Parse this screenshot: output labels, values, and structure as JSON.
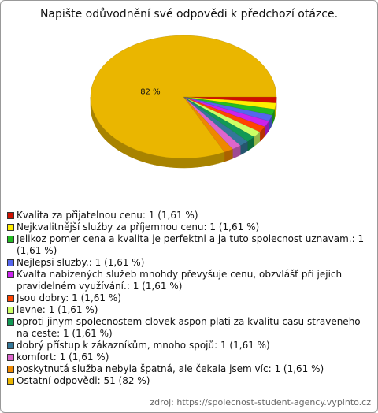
{
  "chart_data": {
    "type": "pie",
    "title": "Napište odůvodnění své odpovědi k předchozí otázce.",
    "categories": [
      "Kvalita za přijatelnou cenu:",
      "Nejkvalitnější služby za příjemnou cenu:",
      "Jelikoz pomer cena a kvalita je perfektni a ja tuto spolecnost uznavam.:",
      "Nejlepsi sluzby.:",
      "Kvalta nabízených služeb mnohdy převyšuje cenu, obzvlášť při jejich pravidelném využívání.:",
      "Jsou dobry:",
      "levne:",
      "oproti jinym spolecnostem clovek aspon plati za kvalitu casu straveneho na ceste:",
      "dobrý přístup k zákazníkům, mnoho spojů:",
      "komfort:",
      "poskytnutá služba nebyla špatná, ale čekala jsem víc:",
      "Ostatní odpovědi:"
    ],
    "values": [
      1,
      1,
      1,
      1,
      1,
      1,
      1,
      1,
      1,
      1,
      1,
      51
    ],
    "value_labels": [
      "1 (1,61 %)",
      "1 (1,61 %)",
      "1 (1,61 %)",
      "1 (1,61 %)",
      "1 (1,61 %)",
      "1 (1,61 %)",
      "1 (1,61 %)",
      "1 (1,61 %)",
      "1 (1,61 %)",
      "1 (1,61 %)",
      "1 (1,61 %)",
      "51 (82 %)"
    ],
    "slice_labels": [
      null,
      null,
      null,
      null,
      null,
      null,
      null,
      null,
      null,
      null,
      null,
      "82 %"
    ],
    "colors": [
      "#d01000",
      "#ffee00",
      "#22bb22",
      "#5566ee",
      "#cc22ee",
      "#ff4400",
      "#ccff66",
      "#119955",
      "#337799",
      "#dd66cc",
      "#ee8800",
      "#eab600"
    ],
    "source": "zdroj: https://spolecnost-student-agency.vyplnto.cz"
  }
}
